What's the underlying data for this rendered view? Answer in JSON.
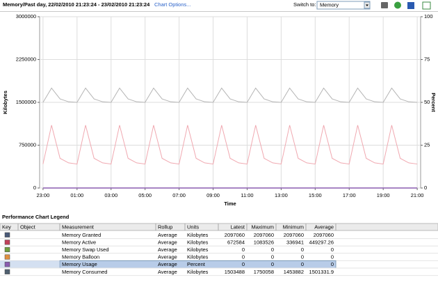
{
  "header": {
    "title": "Memory/Past day, 22/02/2010 21:23:24 - 23/02/2010 21:23:24",
    "chart_options": "Chart Options...",
    "switch_to": "Switch to:",
    "selected": "Memory"
  },
  "chart_data": {
    "type": "line",
    "ylabel": "Kilobytes",
    "y2label": "Percent",
    "xlabel": "Time",
    "x": [
      1,
      1.5,
      2,
      2.5,
      3,
      3.5,
      4,
      4.5,
      5,
      5.5,
      6,
      6.5,
      7,
      7.5,
      8,
      8.5,
      9,
      9.5,
      10,
      10.5,
      11,
      11.5,
      12,
      12.5,
      13,
      13.5,
      14,
      14.5,
      15,
      15.5,
      16,
      16.5,
      17,
      17.5,
      18,
      18.5,
      19,
      19.5,
      20,
      20.5,
      21,
      21.5,
      22,
      22.5,
      23
    ],
    "xlim": [
      0.8,
      23.2
    ],
    "xticks": [
      {
        "value": 1,
        "label": "23:00"
      },
      {
        "value": 3,
        "label": "01:00"
      },
      {
        "value": 5,
        "label": "03:00"
      },
      {
        "value": 7,
        "label": "05:00"
      },
      {
        "value": 9,
        "label": "07:00"
      },
      {
        "value": 11,
        "label": "09:00"
      },
      {
        "value": 13,
        "label": "11:00"
      },
      {
        "value": 15,
        "label": "13:00"
      },
      {
        "value": 17,
        "label": "15:00"
      },
      {
        "value": 19,
        "label": "17:00"
      },
      {
        "value": 21,
        "label": "19:00"
      },
      {
        "value": 23,
        "label": "21:00"
      }
    ],
    "ylim": [
      0,
      3000000
    ],
    "yticks": [
      0,
      750000,
      1500000,
      2250000,
      3000000
    ],
    "y2lim": [
      0,
      100
    ],
    "y2ticks": [
      0,
      25,
      50,
      75,
      100
    ],
    "grid": true,
    "series": [
      {
        "color": "#b4b4b4",
        "values": [
          1500000,
          1750000,
          1560000,
          1510000,
          1500000,
          1750000,
          1560000,
          1510000,
          1500000,
          1750000,
          1560000,
          1510000,
          1500000,
          1750000,
          1560000,
          1510000,
          1500000,
          1750000,
          1560000,
          1510000,
          1500000,
          1750000,
          1560000,
          1510000,
          1500000,
          1750000,
          1560000,
          1510000,
          1500000,
          1750000,
          1560000,
          1510000,
          1500000,
          1750000,
          1560000,
          1510000,
          1500000,
          1750000,
          1560000,
          1510000,
          1500000,
          1750000,
          1560000,
          1510000,
          1500000
        ]
      },
      {
        "color": "#f0a8b0",
        "values": [
          420000,
          1100000,
          520000,
          440000,
          420000,
          1100000,
          520000,
          440000,
          420000,
          1100000,
          520000,
          440000,
          420000,
          1100000,
          520000,
          440000,
          420000,
          1100000,
          520000,
          440000,
          420000,
          1100000,
          520000,
          440000,
          420000,
          1100000,
          520000,
          440000,
          420000,
          1100000,
          520000,
          440000,
          420000,
          1100000,
          520000,
          440000,
          420000,
          1100000,
          520000,
          440000,
          420000,
          1100000,
          520000,
          440000,
          420000
        ]
      },
      {
        "color": "#8a5cb0",
        "axis": "y2",
        "values": [
          0,
          0,
          0,
          0,
          0,
          0,
          0,
          0,
          0,
          0,
          0,
          0,
          0,
          0,
          0,
          0,
          0,
          0,
          0,
          0,
          0,
          0,
          0,
          0,
          0,
          0,
          0,
          0,
          0,
          0,
          0,
          0,
          0,
          0,
          0,
          0,
          0,
          0,
          0,
          0,
          0,
          0,
          0,
          0,
          0
        ]
      }
    ]
  },
  "legend_table": {
    "title": "Performance Chart Legend",
    "columns": [
      "Key",
      "Object",
      "Measurement",
      "Rollup",
      "Units",
      "Latest",
      "Maximum",
      "Minimum",
      "Average"
    ],
    "selected_row": 4,
    "rows": [
      {
        "color": "#4a5a78",
        "measurement": "Memory Granted",
        "rollup": "Average",
        "units": "Kilobytes",
        "latest": 2097060,
        "maximum": 2097060,
        "minimum": 2097060,
        "average": 2097060
      },
      {
        "color": "#c0405a",
        "measurement": "Memory Active",
        "rollup": "Average",
        "units": "Kilobytes",
        "latest": 672584,
        "maximum": 1083526,
        "minimum": 336941,
        "average": 449297.26
      },
      {
        "color": "#70a040",
        "measurement": "Memory Swap Used",
        "rollup": "Average",
        "units": "Kilobytes",
        "latest": 0,
        "maximum": 0,
        "minimum": 0,
        "average": 0
      },
      {
        "color": "#e09040",
        "measurement": "Memory Balloon",
        "rollup": "Average",
        "units": "Kilobytes",
        "latest": 0,
        "maximum": 0,
        "minimum": 0,
        "average": 0
      },
      {
        "color": "#8a5cb0",
        "measurement": "Memory Usage",
        "rollup": "Average",
        "units": "Percent",
        "latest": 0,
        "maximum": 0,
        "minimum": 0,
        "average": 0
      },
      {
        "color": "#506070",
        "measurement": "Memory Consumed",
        "rollup": "Average",
        "units": "Kilobytes",
        "latest": 1503488,
        "maximum": 1750058,
        "minimum": 1453882,
        "average": 1501331.9
      }
    ]
  }
}
